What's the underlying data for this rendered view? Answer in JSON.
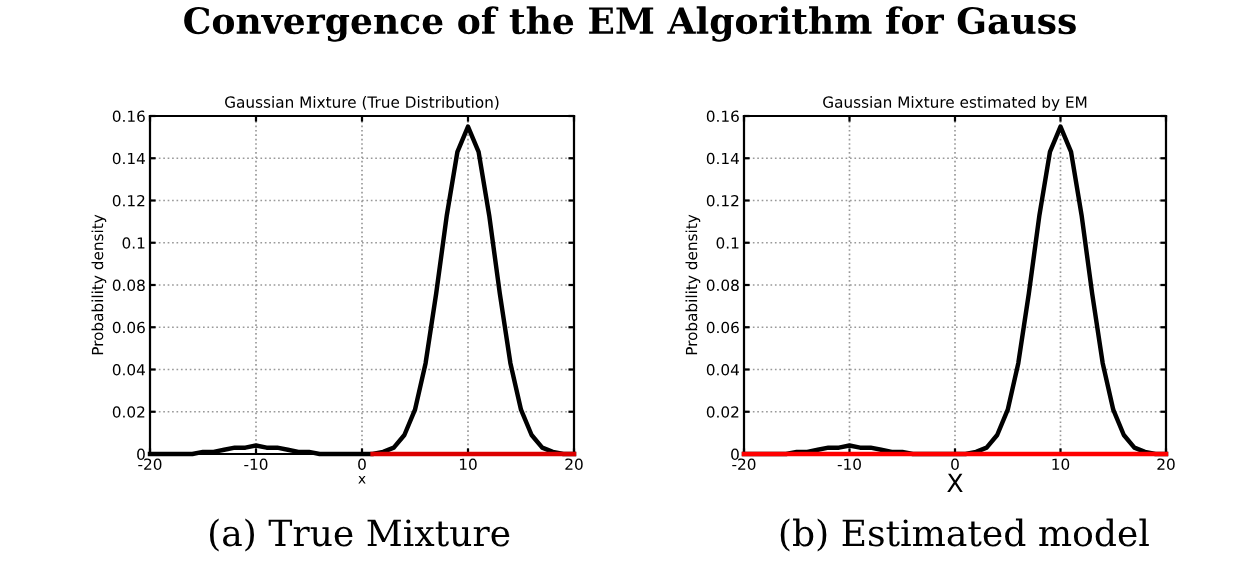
{
  "chart_data": [
    {
      "type": "line",
      "title": "Gaussian Mixture (True Distribution)",
      "xlabel": "x",
      "ylabel": "Probability density",
      "x": [
        -20,
        -19,
        -18,
        -17,
        -16,
        -15,
        -14,
        -13,
        -12,
        -11,
        -10,
        -9,
        -8,
        -7,
        -6,
        -5,
        -4,
        -3,
        -2,
        -1,
        0,
        1,
        2,
        3,
        4,
        5,
        6,
        7,
        8,
        9,
        10,
        11,
        12,
        13,
        14,
        15,
        16,
        17,
        18,
        19,
        20
      ],
      "series": [
        {
          "color": "#000000",
          "values": [
            0,
            0,
            0,
            0,
            0,
            0.001,
            0.001,
            0.002,
            0.003,
            0.003,
            0.004,
            0.003,
            0.003,
            0.002,
            0.001,
            0.001,
            0,
            0,
            0,
            0,
            0,
            0,
            0.001,
            0.003,
            0.009,
            0.021,
            0.043,
            0.076,
            0.113,
            0.143,
            0.155,
            0.143,
            0.113,
            0.076,
            0.043,
            0.021,
            0.009,
            0.003,
            0.001,
            0,
            0
          ]
        },
        {
          "color": "#dd0000",
          "x": [
            1,
            20
          ],
          "values": [
            0,
            0
          ]
        }
      ],
      "xlim": [
        -20,
        20
      ],
      "xticks": [
        -20,
        -10,
        0,
        10,
        20
      ],
      "ylim": [
        0,
        0.16
      ],
      "yticks": [
        0,
        0.02,
        0.04,
        0.06,
        0.08,
        0.1,
        0.12,
        0.14,
        0.16
      ],
      "grid": true,
      "annotations": [
        "Convergence of the EM Algorithm for Gauss",
        "(a) True Mixture"
      ]
    },
    {
      "type": "line",
      "title": "Gaussian Mixture estimated by EM",
      "xlabel": "X",
      "ylabel": "Probability density",
      "x": [
        -20,
        -19,
        -18,
        -17,
        -16,
        -15,
        -14,
        -13,
        -12,
        -11,
        -10,
        -9,
        -8,
        -7,
        -6,
        -5,
        -4,
        -3,
        -2,
        -1,
        0,
        1,
        2,
        3,
        4,
        5,
        6,
        7,
        8,
        9,
        10,
        11,
        12,
        13,
        14,
        15,
        16,
        17,
        18,
        19,
        20
      ],
      "series": [
        {
          "color": "#000000",
          "values": [
            0,
            0,
            0,
            0,
            0,
            0.001,
            0.001,
            0.002,
            0.003,
            0.003,
            0.004,
            0.003,
            0.003,
            0.002,
            0.001,
            0.001,
            0,
            0,
            0,
            0,
            0,
            0,
            0.001,
            0.003,
            0.009,
            0.021,
            0.043,
            0.076,
            0.113,
            0.143,
            0.155,
            0.143,
            0.113,
            0.076,
            0.043,
            0.021,
            0.009,
            0.003,
            0.001,
            0,
            0
          ]
        },
        {
          "color": "#ff0000",
          "x": [
            -20,
            20
          ],
          "values": [
            0,
            0
          ]
        }
      ],
      "xlim": [
        -20,
        20
      ],
      "xticks": [
        -20,
        -10,
        0,
        10,
        20
      ],
      "ylim": [
        0,
        0.16
      ],
      "yticks": [
        0,
        0.02,
        0.04,
        0.06,
        0.08,
        0.1,
        0.12,
        0.14,
        0.16
      ],
      "grid": true,
      "annotations": [
        "(b) Estimated model"
      ]
    }
  ]
}
